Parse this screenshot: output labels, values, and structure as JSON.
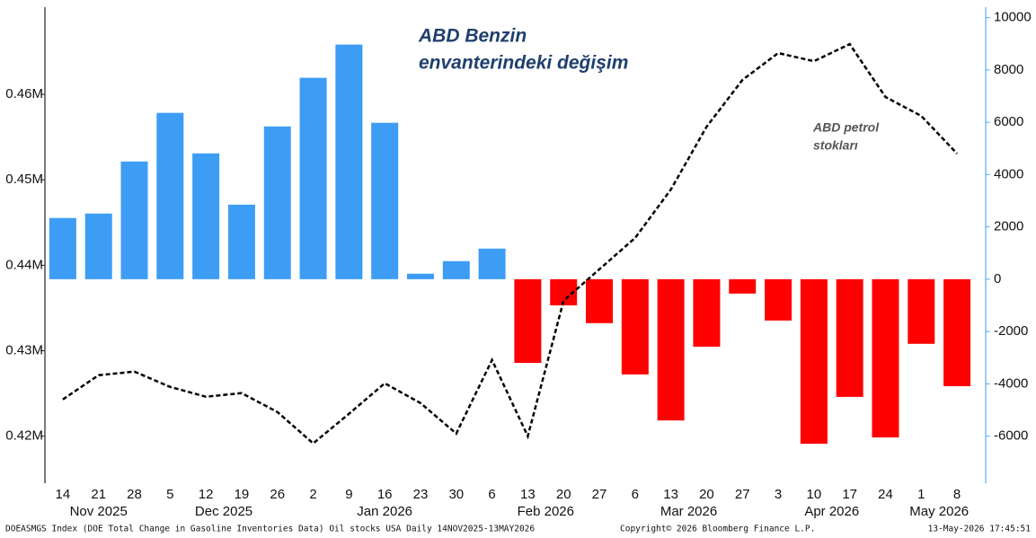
{
  "chart_data": {
    "type": "bar_line",
    "annotations": [
      [
        "ABD Benzin",
        "envanterindeki değişim"
      ],
      [
        "ABD petrol",
        "stokları"
      ]
    ],
    "categories": [
      "14",
      "21",
      "28",
      "5",
      "12",
      "19",
      "26",
      "2",
      "9",
      "16",
      "23",
      "30",
      "6",
      "13",
      "20",
      "27",
      "6",
      "13",
      "20",
      "27",
      "3",
      "10",
      "17",
      "24",
      "1",
      "8"
    ],
    "months": [
      "Nov 2025",
      "Dec 2025",
      "Jan 2026",
      "Feb 2026",
      "Mar 2026",
      "Apr 2026",
      "May 2026"
    ],
    "month_counts": [
      3,
      4,
      5,
      4,
      4,
      4,
      2
    ],
    "bars": {
      "axis": "y2",
      "color": "#3d9df5",
      "negative_color": "#ff0000",
      "values": [
        2340,
        2510,
        4500,
        6360,
        4810,
        2850,
        5840,
        7700,
        8970,
        5980,
        210,
        690,
        1170,
        -3200,
        -1000,
        -1680,
        -3640,
        -5400,
        -2580,
        -550,
        -1580,
        -6290,
        -4500,
        -6050,
        -2470,
        -4090
      ]
    },
    "line": {
      "axis": "y",
      "color": "#000000",
      "dashed": true,
      "values": [
        424300,
        427140,
        427560,
        425770,
        424620,
        425040,
        422830,
        419160,
        422620,
        426190,
        423880,
        420310,
        428920,
        420000,
        435850,
        439530,
        443200,
        448870,
        456220,
        461680,
        464830,
        463880,
        465880,
        459690,
        457480,
        453070
      ]
    },
    "ylim": [
      414500,
      470200
    ],
    "yticks": [
      {
        "value": 420000,
        "label": "0.42M"
      },
      {
        "value": 430000,
        "label": "0.43M"
      },
      {
        "value": 440000,
        "label": "0.44M"
      },
      {
        "value": 450000,
        "label": "0.45M"
      },
      {
        "value": 460000,
        "label": "0.46M"
      }
    ],
    "y2lim": [
      -7800,
      10400
    ],
    "y2ticks": [
      -6000,
      -4000,
      -2000,
      0,
      2000,
      4000,
      6000,
      8000,
      10000
    ],
    "footer": [
      "DOEASMGS Index (DOE Total Change in Gasoline Inventories Data) Oil stocks USA Daily 14NOV2025-13MAY2026",
      "Copyright© 2026 Bloomberg Finance L.P.",
      "13-May-2026 17:45:51"
    ]
  }
}
